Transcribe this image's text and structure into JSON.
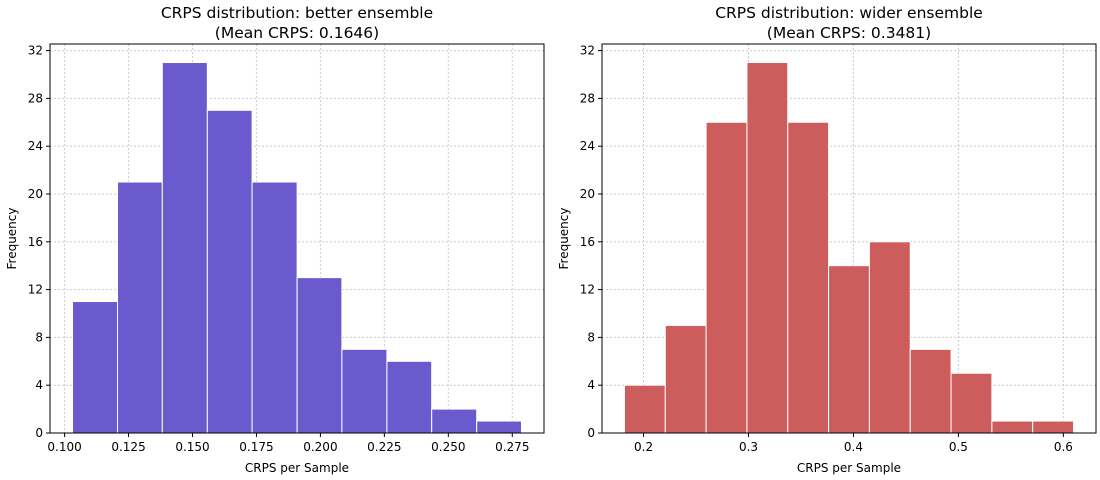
{
  "chart_data": [
    {
      "type": "histogram",
      "title": "CRPS distribution: better ensemble",
      "subtitle": "(Mean CRPS: 0.1646)",
      "x_label": "CRPS per Sample",
      "y_label": "Frequency",
      "bins": [
        0.1031,
        0.1207,
        0.1382,
        0.1558,
        0.1733,
        0.1909,
        0.2084,
        0.226,
        0.2435,
        0.2611,
        0.2786
      ],
      "values": [
        11,
        21,
        31,
        27,
        21,
        13,
        7,
        6,
        2,
        1
      ],
      "color": "#6a5acd",
      "xlim": [
        0.0943,
        0.2874
      ],
      "ylim": [
        0,
        32.55
      ],
      "xticks": [
        {
          "value": 0.1,
          "label": "0.100"
        },
        {
          "value": 0.125,
          "label": "0.125"
        },
        {
          "value": 0.15,
          "label": "0.150"
        },
        {
          "value": 0.175,
          "label": "0.175"
        },
        {
          "value": 0.2,
          "label": "0.200"
        },
        {
          "value": 0.225,
          "label": "0.225"
        },
        {
          "value": 0.25,
          "label": "0.250"
        },
        {
          "value": 0.275,
          "label": "0.275"
        }
      ],
      "yticks": [
        0,
        4,
        8,
        12,
        16,
        20,
        24,
        28,
        32
      ],
      "grid": true
    },
    {
      "type": "histogram",
      "title": "CRPS distribution: wider ensemble",
      "subtitle": "(Mean CRPS: 0.3481)",
      "x_label": "CRPS per Sample",
      "y_label": "Frequency",
      "bins": [
        0.1818,
        0.2207,
        0.2596,
        0.2985,
        0.3374,
        0.3763,
        0.4152,
        0.4541,
        0.493,
        0.5319,
        0.5708,
        0.6097
      ],
      "values": [
        4,
        9,
        26,
        31,
        26,
        14,
        16,
        7,
        5,
        1,
        1
      ],
      "color": "#cd5c5c",
      "xlim": [
        0.1604,
        0.6311
      ],
      "ylim": [
        0,
        32.55
      ],
      "xticks": [
        0.2,
        0.3,
        0.4,
        0.5,
        0.6
      ],
      "yticks": [
        0,
        4,
        8,
        12,
        16,
        20,
        24,
        28,
        32
      ],
      "grid": true
    }
  ]
}
